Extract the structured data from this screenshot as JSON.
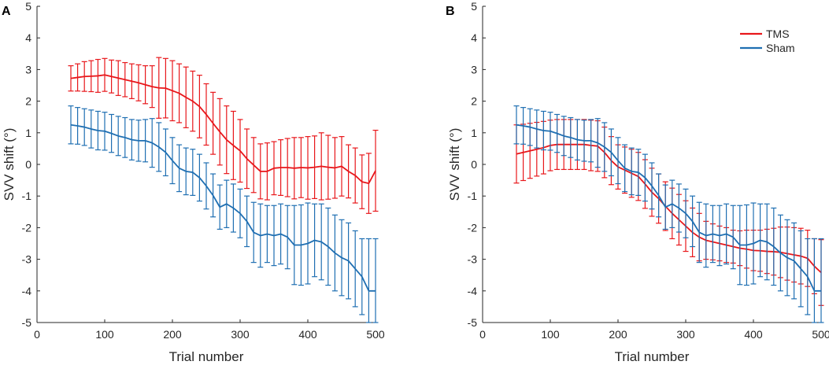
{
  "figure": {
    "panels": [
      {
        "letter": "A",
        "xlabel": "Trial number",
        "ylabel": "SVV shift (°)"
      },
      {
        "letter": "B",
        "xlabel": "Trial number",
        "ylabel": "SVV shift (°)"
      }
    ],
    "legend": {
      "position": "top-right",
      "entries": [
        {
          "label": "TMS",
          "color": "#e8171b"
        },
        {
          "label": "Sham",
          "color": "#1f6fb2"
        }
      ]
    }
  },
  "chart_data": [
    {
      "type": "line",
      "panel": "A",
      "xlabel": "Trial number",
      "ylabel": "SVV shift (°)",
      "xlim": [
        0,
        500
      ],
      "ylim": [
        -5,
        5
      ],
      "xticks": [
        0,
        100,
        200,
        300,
        400,
        500
      ],
      "yticks": [
        -5,
        -4,
        -3,
        -2,
        -1,
        0,
        1,
        2,
        3,
        4,
        5
      ],
      "grid": false,
      "x": [
        50,
        60,
        70,
        80,
        90,
        100,
        110,
        120,
        130,
        140,
        150,
        160,
        170,
        180,
        190,
        200,
        210,
        220,
        230,
        240,
        250,
        260,
        270,
        280,
        290,
        300,
        310,
        320,
        330,
        340,
        350,
        360,
        370,
        380,
        390,
        400,
        410,
        420,
        430,
        440,
        450,
        460,
        470,
        480,
        490,
        500
      ],
      "series": [
        {
          "name": "TMS",
          "color": "#e8171b",
          "mean": [
            2.72,
            2.75,
            2.78,
            2.79,
            2.8,
            2.83,
            2.78,
            2.73,
            2.68,
            2.63,
            2.58,
            2.52,
            2.46,
            2.42,
            2.41,
            2.33,
            2.25,
            2.12,
            2.0,
            1.83,
            1.58,
            1.3,
            1.03,
            0.78,
            0.6,
            0.43,
            0.18,
            -0.02,
            -0.22,
            -0.22,
            -0.12,
            -0.1,
            -0.1,
            -0.12,
            -0.1,
            -0.11,
            -0.09,
            -0.06,
            -0.09,
            -0.11,
            -0.06,
            -0.22,
            -0.35,
            -0.55,
            -0.6,
            -0.2
          ],
          "upper": [
            3.12,
            3.18,
            3.25,
            3.28,
            3.32,
            3.35,
            3.3,
            3.28,
            3.22,
            3.18,
            3.15,
            3.12,
            3.12,
            3.38,
            3.35,
            3.28,
            3.18,
            3.08,
            2.95,
            2.82,
            2.55,
            2.28,
            2.08,
            1.85,
            1.68,
            1.42,
            1.12,
            0.85,
            0.65,
            0.68,
            0.72,
            0.78,
            0.82,
            0.85,
            0.85,
            0.88,
            0.9,
            1.0,
            0.92,
            0.85,
            0.88,
            0.62,
            0.52,
            0.3,
            0.35,
            1.08
          ],
          "lower": [
            2.32,
            2.32,
            2.31,
            2.3,
            2.28,
            2.31,
            2.26,
            2.18,
            2.14,
            2.08,
            2.01,
            1.92,
            1.8,
            1.46,
            1.47,
            1.38,
            1.32,
            1.16,
            1.05,
            0.84,
            0.61,
            0.32,
            -0.02,
            -0.29,
            -0.48,
            -0.56,
            -0.76,
            -0.89,
            -1.09,
            -1.12,
            -0.96,
            -0.98,
            -1.02,
            -1.09,
            -1.05,
            -1.1,
            -1.08,
            -1.12,
            -1.1,
            -1.07,
            -1.0,
            -1.06,
            -1.22,
            -1.4,
            -1.55,
            -1.48
          ]
        },
        {
          "name": "Sham",
          "color": "#1f6fb2",
          "mean": [
            1.25,
            1.22,
            1.18,
            1.12,
            1.07,
            1.05,
            0.98,
            0.9,
            0.85,
            0.78,
            0.75,
            0.75,
            0.68,
            0.55,
            0.38,
            0.12,
            -0.12,
            -0.22,
            -0.25,
            -0.42,
            -0.68,
            -0.98,
            -1.35,
            -1.25,
            -1.38,
            -1.55,
            -1.8,
            -2.15,
            -2.25,
            -2.2,
            -2.25,
            -2.2,
            -2.3,
            -2.55,
            -2.55,
            -2.5,
            -2.4,
            -2.45,
            -2.6,
            -2.8,
            -2.95,
            -3.05,
            -3.3,
            -3.55,
            -4.0,
            -4.0
          ]
        },
        {
          "name": "Sham bounds",
          "series_ref": "Sham",
          "upper": [
            1.85,
            1.8,
            1.76,
            1.72,
            1.68,
            1.65,
            1.58,
            1.52,
            1.48,
            1.42,
            1.4,
            1.42,
            1.45,
            1.32,
            1.12,
            0.85,
            0.62,
            0.52,
            0.48,
            0.32,
            0.05,
            -0.3,
            -0.65,
            -0.5,
            -0.62,
            -0.78,
            -1.0,
            -1.2,
            -1.25,
            -1.3,
            -1.3,
            -1.25,
            -1.3,
            -1.3,
            -1.28,
            -1.22,
            -1.25,
            -1.25,
            -1.38,
            -1.6,
            -1.75,
            -1.85,
            -2.1,
            -2.35,
            -2.35,
            -2.35
          ],
          "lower": [
            0.65,
            0.64,
            0.6,
            0.52,
            0.46,
            0.45,
            0.38,
            0.28,
            0.22,
            0.14,
            0.1,
            0.08,
            -0.09,
            -0.22,
            -0.36,
            -0.61,
            -0.86,
            -0.96,
            -0.98,
            -1.16,
            -1.41,
            -1.66,
            -2.05,
            -2.0,
            -2.14,
            -2.32,
            -2.6,
            -3.1,
            -3.25,
            -3.1,
            -3.2,
            -3.15,
            -3.3,
            -3.8,
            -3.82,
            -3.78,
            -3.55,
            -3.65,
            -3.82,
            -4.0,
            -4.15,
            -4.25,
            -4.5,
            -4.75,
            -5.0,
            -5.0
          ]
        }
      ]
    },
    {
      "type": "line",
      "panel": "B",
      "xlabel": "Trial number",
      "ylabel": "SVV shift (°)",
      "xlim": [
        0,
        500
      ],
      "ylim": [
        -5,
        5
      ],
      "xticks": [
        0,
        100,
        200,
        300,
        400,
        500
      ],
      "yticks": [
        -5,
        -4,
        -3,
        -2,
        -1,
        0,
        1,
        2,
        3,
        4,
        5
      ],
      "grid": false,
      "x": [
        50,
        60,
        70,
        80,
        90,
        100,
        110,
        120,
        130,
        140,
        150,
        160,
        170,
        180,
        190,
        200,
        210,
        220,
        230,
        240,
        250,
        260,
        270,
        280,
        290,
        300,
        310,
        320,
        330,
        340,
        350,
        360,
        370,
        380,
        390,
        400,
        410,
        420,
        430,
        440,
        450,
        460,
        470,
        480,
        490,
        500
      ],
      "series": [
        {
          "name": "TMS",
          "color": "#e8171b",
          "mean": [
            0.33,
            0.38,
            0.43,
            0.48,
            0.53,
            0.6,
            0.63,
            0.63,
            0.63,
            0.63,
            0.63,
            0.6,
            0.58,
            0.38,
            0.12,
            -0.08,
            -0.18,
            -0.28,
            -0.38,
            -0.62,
            -0.88,
            -1.08,
            -1.32,
            -1.55,
            -1.75,
            -1.95,
            -2.15,
            -2.3,
            -2.4,
            -2.45,
            -2.5,
            -2.55,
            -2.6,
            -2.65,
            -2.68,
            -2.72,
            -2.73,
            -2.75,
            -2.76,
            -2.78,
            -2.82,
            -2.86,
            -2.9,
            -2.97,
            -3.22,
            -3.42
          ],
          "upper": [
            1.25,
            1.27,
            1.3,
            1.33,
            1.36,
            1.4,
            1.42,
            1.42,
            1.42,
            1.42,
            1.42,
            1.4,
            1.38,
            1.18,
            0.88,
            0.62,
            0.55,
            0.48,
            0.38,
            0.15,
            -0.12,
            -0.3,
            -0.55,
            -0.75,
            -0.95,
            -1.15,
            -1.38,
            -1.55,
            -1.8,
            -1.88,
            -1.95,
            -2.0,
            -2.08,
            -2.1,
            -2.08,
            -2.08,
            -2.08,
            -2.05,
            -2.02,
            -1.98,
            -1.98,
            -2.0,
            -2.02,
            -2.08,
            -2.35,
            -2.38
          ],
          "lower": [
            -0.59,
            -0.51,
            -0.44,
            -0.37,
            -0.3,
            -0.2,
            -0.16,
            -0.16,
            -0.16,
            -0.16,
            -0.16,
            -0.2,
            -0.22,
            -0.42,
            -0.64,
            -0.78,
            -0.91,
            -1.04,
            -1.14,
            -1.39,
            -1.64,
            -1.86,
            -2.09,
            -2.35,
            -2.55,
            -2.75,
            -2.92,
            -3.05,
            -3.0,
            -3.02,
            -3.05,
            -3.1,
            -3.12,
            -3.2,
            -3.28,
            -3.36,
            -3.38,
            -3.45,
            -3.5,
            -3.58,
            -3.66,
            -3.72,
            -3.78,
            -3.86,
            -4.09,
            -4.46
          ]
        },
        {
          "name": "Sham",
          "color": "#1f6fb2",
          "mean": [
            1.25,
            1.22,
            1.18,
            1.12,
            1.07,
            1.05,
            0.98,
            0.9,
            0.85,
            0.78,
            0.75,
            0.75,
            0.68,
            0.55,
            0.38,
            0.12,
            -0.12,
            -0.22,
            -0.25,
            -0.42,
            -0.68,
            -0.98,
            -1.35,
            -1.25,
            -1.38,
            -1.55,
            -1.8,
            -2.15,
            -2.25,
            -2.2,
            -2.25,
            -2.2,
            -2.3,
            -2.55,
            -2.55,
            -2.5,
            -2.4,
            -2.45,
            -2.6,
            -2.8,
            -2.95,
            -3.05,
            -3.3,
            -3.55,
            -4.0,
            -4.0
          ]
        },
        {
          "name": "Sham bounds",
          "series_ref": "Sham",
          "upper": [
            1.85,
            1.8,
            1.76,
            1.72,
            1.68,
            1.65,
            1.58,
            1.52,
            1.48,
            1.42,
            1.4,
            1.42,
            1.45,
            1.32,
            1.12,
            0.85,
            0.62,
            0.52,
            0.48,
            0.32,
            0.05,
            -0.3,
            -0.65,
            -0.5,
            -0.62,
            -0.78,
            -1.0,
            -1.2,
            -1.25,
            -1.3,
            -1.3,
            -1.25,
            -1.3,
            -1.3,
            -1.28,
            -1.22,
            -1.25,
            -1.25,
            -1.38,
            -1.6,
            -1.75,
            -1.85,
            -2.1,
            -2.35,
            -2.35,
            -2.35
          ],
          "lower": [
            0.65,
            0.64,
            0.6,
            0.52,
            0.46,
            0.45,
            0.38,
            0.28,
            0.22,
            0.14,
            0.1,
            0.08,
            -0.09,
            -0.22,
            -0.36,
            -0.61,
            -0.86,
            -0.96,
            -0.98,
            -1.16,
            -1.41,
            -1.66,
            -2.05,
            -2.0,
            -2.14,
            -2.32,
            -2.6,
            -3.1,
            -3.25,
            -3.1,
            -3.2,
            -3.15,
            -3.3,
            -3.8,
            -3.82,
            -3.78,
            -3.55,
            -3.65,
            -3.82,
            -4.0,
            -4.15,
            -4.25,
            -4.5,
            -4.75,
            -5.0,
            -5.0
          ]
        }
      ]
    }
  ]
}
